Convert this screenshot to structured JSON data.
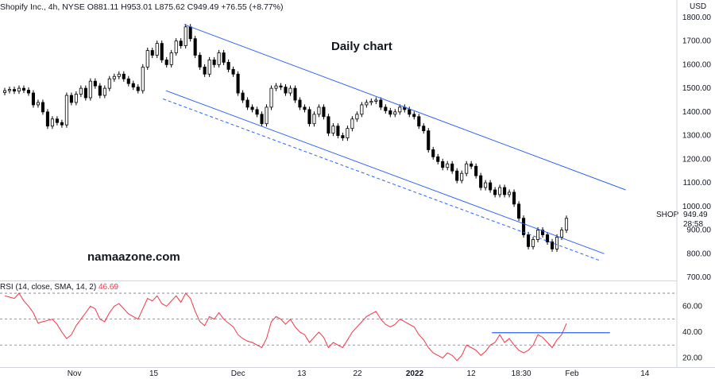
{
  "header": {
    "symbol_line": "Shopify Inc., 4h, NYSE  O881.11  H953.01  L875.62  C949.49  +76.55 (+8.77%)",
    "currency": "USD"
  },
  "annotations": {
    "title": "Daily chart",
    "watermark": "namaazone.com"
  },
  "price_tag": {
    "symbol": "SHOP",
    "last": "949.49",
    "countdown": "28:58"
  },
  "rsi_header": {
    "label": "RSI (14, close, SMA, 14, 2)",
    "value": "46.69"
  },
  "colors": {
    "up": "#ffffff",
    "down": "#000000",
    "wick": "#000000",
    "channel": "#2962ff",
    "rsi_line": "#f23645",
    "rsi_level": "#2962ff",
    "grid": "#e0e3eb"
  },
  "chart_data": [
    {
      "type": "candlestick",
      "ylim": [
        690,
        1840
      ],
      "y_ticks": [
        1800,
        1700,
        1600,
        1500,
        1400,
        1300,
        1200,
        1100,
        1000,
        900,
        800,
        700
      ],
      "x_ticks": [
        "Nov",
        "15",
        "Dec",
        "13",
        "22",
        "2022",
        "12",
        "18:30",
        "Feb",
        "14"
      ],
      "closes": [
        1490,
        1495,
        1488,
        1500,
        1492,
        1480,
        1430,
        1440,
        1400,
        1340,
        1370,
        1355,
        1345,
        1470,
        1440,
        1475,
        1500,
        1460,
        1530,
        1510,
        1470,
        1500,
        1540,
        1550,
        1560,
        1540,
        1520,
        1505,
        1490,
        1590,
        1660,
        1640,
        1690,
        1620,
        1600,
        1650,
        1700,
        1680,
        1760,
        1710,
        1640,
        1590,
        1560,
        1620,
        1600,
        1650,
        1610,
        1580,
        1560,
        1480,
        1450,
        1420,
        1410,
        1390,
        1350,
        1420,
        1500,
        1510,
        1505,
        1480,
        1500,
        1450,
        1420,
        1410,
        1350,
        1390,
        1420,
        1380,
        1310,
        1340,
        1300,
        1290,
        1330,
        1370,
        1390,
        1430,
        1440,
        1445,
        1450,
        1420,
        1405,
        1390,
        1400,
        1420,
        1410,
        1390,
        1380,
        1340,
        1320,
        1240,
        1210,
        1190,
        1165,
        1180,
        1150,
        1110,
        1140,
        1180,
        1170,
        1130,
        1080,
        1100,
        1070,
        1050,
        1080,
        1050,
        1060,
        1010,
        950,
        880,
        830,
        860,
        900,
        880,
        850,
        820,
        870,
        900,
        949.49
      ],
      "series": [
        {
          "name": "Upper channel",
          "x": [
            0.2575,
            0.875
          ],
          "y": [
            1770,
            1070
          ]
        },
        {
          "name": "Lower channel",
          "x": [
            0.232,
            0.845
          ],
          "y": [
            1490,
            800
          ]
        },
        {
          "name": "Lower channel (dashed)",
          "x": [
            0.228,
            0.84
          ],
          "y": [
            1455,
            770
          ]
        }
      ]
    },
    {
      "type": "line",
      "name": "RSI",
      "ylim": [
        13,
        78
      ],
      "y_ticks": [
        60,
        40,
        20
      ],
      "levels": [
        70,
        50,
        30
      ],
      "values": [
        68,
        67,
        66,
        70,
        64,
        60,
        55,
        47,
        48,
        49,
        50,
        46,
        40,
        35,
        38,
        45,
        50,
        55,
        60,
        58,
        50,
        48,
        55,
        60,
        62,
        58,
        54,
        52,
        50,
        58,
        66,
        64,
        68,
        62,
        60,
        64,
        68,
        63,
        70,
        66,
        56,
        48,
        45,
        52,
        50,
        55,
        50,
        47,
        44,
        38,
        35,
        33,
        32,
        30,
        28,
        35,
        48,
        52,
        50,
        46,
        50,
        44,
        40,
        38,
        32,
        36,
        40,
        36,
        28,
        32,
        30,
        28,
        34,
        40,
        44,
        48,
        52,
        54,
        56,
        50,
        46,
        44,
        46,
        50,
        48,
        46,
        44,
        38,
        34,
        28,
        24,
        22,
        20,
        24,
        22,
        18,
        22,
        30,
        28,
        26,
        22,
        25,
        30,
        32,
        38,
        32,
        35,
        30,
        26,
        24,
        26,
        30,
        38,
        36,
        32,
        28,
        34,
        38,
        46.69
      ],
      "level_line": {
        "x": [
          0.688,
          0.853
        ],
        "y": [
          39.5,
          39.5
        ]
      }
    }
  ]
}
